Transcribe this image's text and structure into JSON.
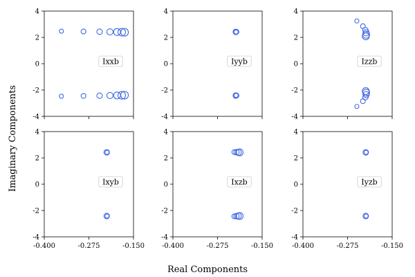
{
  "figure": {
    "xlabel": "Real Components",
    "ylabel": "Imaginary Components"
  },
  "colors": {
    "marker": "#4169e1",
    "axis": "#000000",
    "label_box": "#cccccc"
  },
  "chart_data": [
    {
      "type": "scatter",
      "label": "Ixxb",
      "xlim": [
        -0.4,
        -0.15
      ],
      "ylim": [
        -4,
        4
      ],
      "xticks": [
        "-0.400",
        "-0.275",
        "-0.150"
      ],
      "yticks": [
        "-4",
        "-2",
        "0",
        "2",
        "4"
      ],
      "points": [
        {
          "x": -0.352,
          "y": 2.47,
          "s": 3
        },
        {
          "x": -0.352,
          "y": -2.47,
          "s": 3
        },
        {
          "x": -0.29,
          "y": 2.45,
          "s": 3.5
        },
        {
          "x": -0.29,
          "y": -2.45,
          "s": 3.5
        },
        {
          "x": -0.245,
          "y": 2.43,
          "s": 4
        },
        {
          "x": -0.245,
          "y": -2.43,
          "s": 4
        },
        {
          "x": -0.216,
          "y": 2.42,
          "s": 4.5
        },
        {
          "x": -0.216,
          "y": -2.42,
          "s": 4.5
        },
        {
          "x": -0.196,
          "y": 2.41,
          "s": 5
        },
        {
          "x": -0.196,
          "y": -2.41,
          "s": 5
        },
        {
          "x": -0.183,
          "y": 2.4,
          "s": 5.5
        },
        {
          "x": -0.183,
          "y": -2.4,
          "s": 5.5
        },
        {
          "x": -0.175,
          "y": 2.39,
          "s": 5.5
        },
        {
          "x": -0.175,
          "y": -2.39,
          "s": 5.5
        }
      ]
    },
    {
      "type": "scatter",
      "label": "Iyyb",
      "xlim": [
        -0.4,
        -0.15
      ],
      "ylim": [
        -4,
        4
      ],
      "xticks": [
        "-0.400",
        "-0.275",
        "-0.150"
      ],
      "yticks": [
        "-4",
        "-2",
        "0",
        "2",
        "4"
      ],
      "points": [
        {
          "x": -0.224,
          "y": 2.42,
          "s": 4
        },
        {
          "x": -0.222,
          "y": 2.42,
          "s": 3.5
        },
        {
          "x": -0.223,
          "y": 2.41,
          "s": 3
        },
        {
          "x": -0.224,
          "y": -2.42,
          "s": 4
        },
        {
          "x": -0.222,
          "y": -2.42,
          "s": 3.5
        },
        {
          "x": -0.223,
          "y": -2.41,
          "s": 3
        }
      ]
    },
    {
      "type": "scatter",
      "label": "Izzb",
      "xlim": [
        -0.4,
        -0.15
      ],
      "ylim": [
        -4,
        4
      ],
      "xticks": [
        "-0.400",
        "-0.275",
        "-0.150"
      ],
      "yticks": [
        "-4",
        "-2",
        "0",
        "2",
        "4"
      ],
      "points": [
        {
          "x": -0.249,
          "y": 3.25,
          "s": 3
        },
        {
          "x": -0.249,
          "y": -3.25,
          "s": 3
        },
        {
          "x": -0.232,
          "y": 2.85,
          "s": 3.5
        },
        {
          "x": -0.232,
          "y": -2.85,
          "s": 3.5
        },
        {
          "x": -0.225,
          "y": 2.55,
          "s": 4
        },
        {
          "x": -0.225,
          "y": -2.55,
          "s": 4
        },
        {
          "x": -0.223,
          "y": 2.35,
          "s": 4.5
        },
        {
          "x": -0.223,
          "y": -2.35,
          "s": 4.5
        },
        {
          "x": -0.223,
          "y": 2.2,
          "s": 5
        },
        {
          "x": -0.223,
          "y": -2.2,
          "s": 5
        },
        {
          "x": -0.224,
          "y": 2.08,
          "s": 5
        },
        {
          "x": -0.224,
          "y": -2.08,
          "s": 5
        }
      ]
    },
    {
      "type": "scatter",
      "label": "Ixyb",
      "xlim": [
        -0.4,
        -0.15
      ],
      "ylim": [
        -4,
        4
      ],
      "xticks": [
        "-0.400",
        "-0.275",
        "-0.150"
      ],
      "yticks": [
        "-4",
        "-2",
        "0",
        "2",
        "4"
      ],
      "points": [
        {
          "x": -0.225,
          "y": 2.42,
          "s": 4
        },
        {
          "x": -0.224,
          "y": 2.42,
          "s": 3
        },
        {
          "x": -0.225,
          "y": -2.42,
          "s": 4
        },
        {
          "x": -0.224,
          "y": -2.42,
          "s": 3
        }
      ]
    },
    {
      "type": "scatter",
      "label": "Ixzb",
      "xlim": [
        -0.4,
        -0.15
      ],
      "ylim": [
        -4,
        4
      ],
      "xticks": [
        "-0.400",
        "-0.275",
        "-0.150"
      ],
      "yticks": [
        "-4",
        "-2",
        "0",
        "2",
        "4"
      ],
      "points": [
        {
          "x": -0.228,
          "y": 2.44,
          "s": 3.5
        },
        {
          "x": -0.222,
          "y": 2.43,
          "s": 4
        },
        {
          "x": -0.217,
          "y": 2.42,
          "s": 4.5
        },
        {
          "x": -0.213,
          "y": 2.42,
          "s": 5
        },
        {
          "x": -0.228,
          "y": -2.44,
          "s": 3.5
        },
        {
          "x": -0.222,
          "y": -2.43,
          "s": 4
        },
        {
          "x": -0.217,
          "y": -2.42,
          "s": 4.5
        },
        {
          "x": -0.213,
          "y": -2.42,
          "s": 5
        }
      ]
    },
    {
      "type": "scatter",
      "label": "Iyzb",
      "xlim": [
        -0.4,
        -0.15
      ],
      "ylim": [
        -4,
        4
      ],
      "xticks": [
        "-0.400",
        "-0.275",
        "-0.150"
      ],
      "yticks": [
        "-4",
        "-2",
        "0",
        "2",
        "4"
      ],
      "points": [
        {
          "x": -0.224,
          "y": 2.42,
          "s": 4
        },
        {
          "x": -0.223,
          "y": 2.42,
          "s": 3
        },
        {
          "x": -0.224,
          "y": -2.42,
          "s": 4
        },
        {
          "x": -0.223,
          "y": -2.42,
          "s": 3
        }
      ]
    }
  ]
}
